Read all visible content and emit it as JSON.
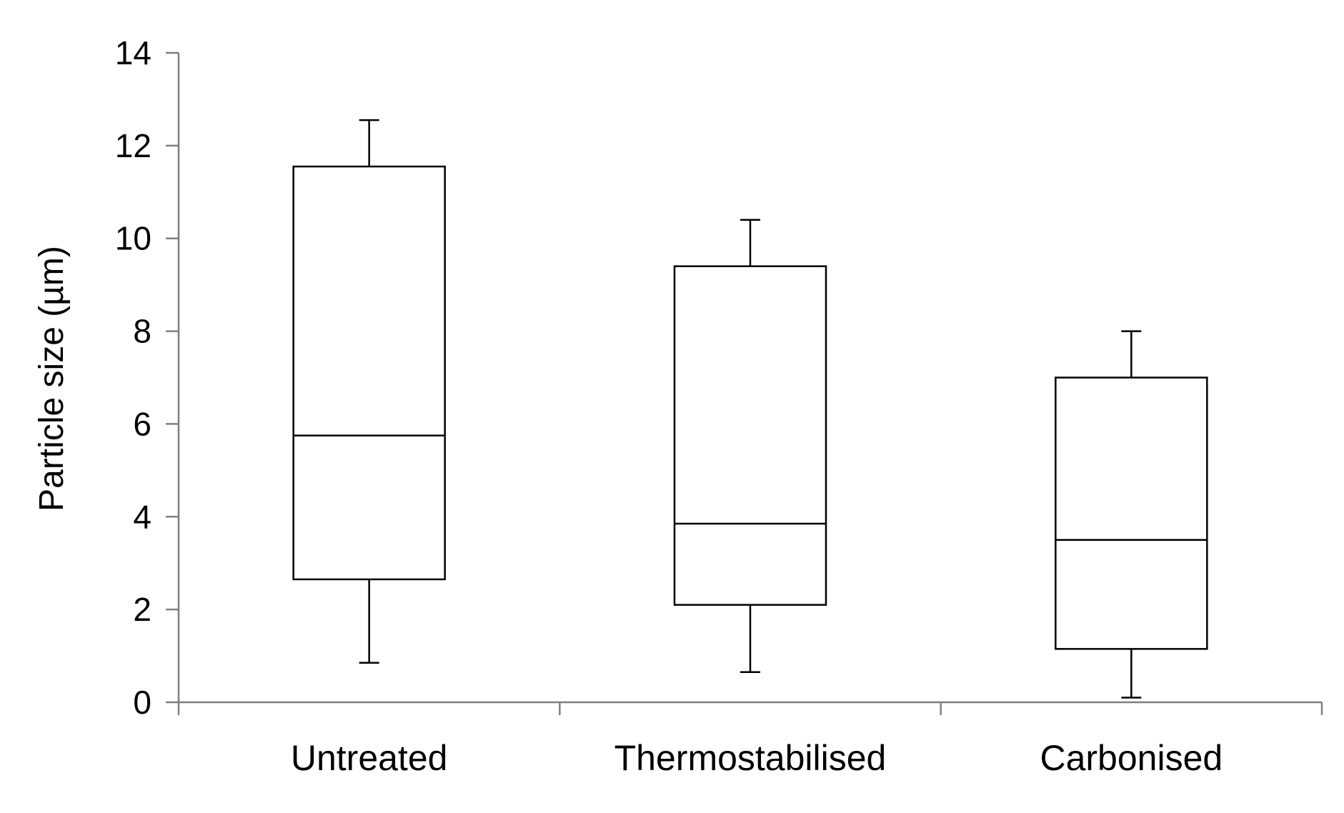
{
  "chart_data": {
    "type": "boxplot",
    "title": "",
    "xlabel": "",
    "ylabel": "Particle size (µm)",
    "ylim": [
      0,
      14
    ],
    "yticks": [
      0,
      2,
      4,
      6,
      8,
      10,
      12,
      14
    ],
    "grid": false,
    "legend": "none",
    "categories": [
      "Untreated",
      "Thermostabilised",
      "Carbonised"
    ],
    "boxes": [
      {
        "category": "Untreated",
        "whisker_low": 0.85,
        "q1": 2.65,
        "median": 5.75,
        "q3": 11.55,
        "whisker_high": 12.55
      },
      {
        "category": "Thermostabilised",
        "whisker_low": 0.65,
        "q1": 2.1,
        "median": 3.85,
        "q3": 9.4,
        "whisker_high": 10.4
      },
      {
        "category": "Carbonised",
        "whisker_low": 0.1,
        "q1": 1.15,
        "median": 3.5,
        "q3": 7.0,
        "whisker_high": 8.0
      }
    ],
    "colors": {
      "box_fill": "#ffffff",
      "stroke": "#000000",
      "axis": "#7f7f7f"
    }
  }
}
